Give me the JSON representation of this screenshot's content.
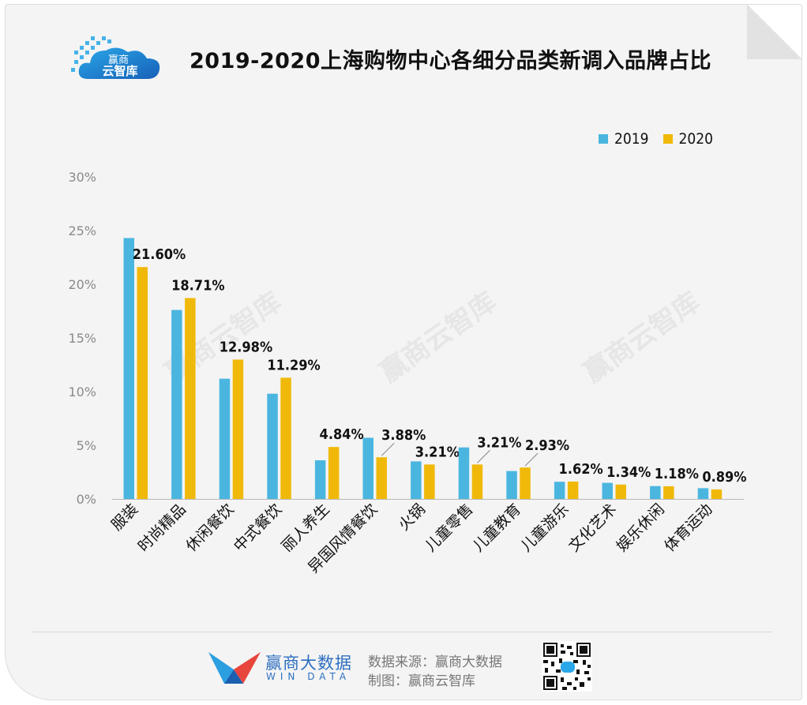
{
  "header": {
    "title": "2019-2020上海购物中心各细分品类新调入品牌占比",
    "logo_text_top": "赢商",
    "logo_text_bottom": "云智库"
  },
  "legend": {
    "items": [
      {
        "label": "2019",
        "color": "#4ab6e0"
      },
      {
        "label": "2020",
        "color": "#f0b90a"
      }
    ],
    "placement": "top-right"
  },
  "watermark": [
    "赢商云智库",
    "赢商云智库",
    "赢商云智库"
  ],
  "chart_data": {
    "type": "bar",
    "title": "2019-2020上海购物中心各细分品类新调入品牌占比",
    "categories": [
      "服装",
      "时尚精品",
      "休闲餐饮",
      "中式餐饮",
      "丽人养生",
      "异国风情餐饮",
      "火锅",
      "儿童零售",
      "儿童教育",
      "儿童游乐",
      "文化艺术",
      "娱乐休闲",
      "体育运动"
    ],
    "series": [
      {
        "name": "2019",
        "color": "#4ab6e0",
        "values": [
          24.3,
          17.6,
          11.2,
          9.8,
          3.6,
          5.7,
          3.5,
          4.8,
          2.6,
          1.6,
          1.5,
          1.2,
          1.0
        ]
      },
      {
        "name": "2020",
        "color": "#f0b90a",
        "values": [
          21.6,
          18.71,
          12.98,
          11.29,
          4.84,
          3.88,
          3.21,
          3.21,
          2.93,
          1.62,
          1.34,
          1.18,
          0.89
        ]
      }
    ],
    "data_labels": [
      "21.60%",
      "18.71%",
      "12.98%",
      "11.29%",
      "4.84%",
      "3.88%",
      "3.21%",
      "3.21%",
      "2.93%",
      "1.62%",
      "1.34%",
      "1.18%",
      "0.89%"
    ],
    "yticks": [
      "0%",
      "5%",
      "10%",
      "15%",
      "20%",
      "25%",
      "30%"
    ],
    "ylim": [
      0,
      30
    ],
    "grid": false
  },
  "footer": {
    "brand_cn": "赢商大数据",
    "brand_en": "WIN DATA",
    "source": "数据来源：赢商大数据",
    "maker": "制图：赢商云智库"
  }
}
